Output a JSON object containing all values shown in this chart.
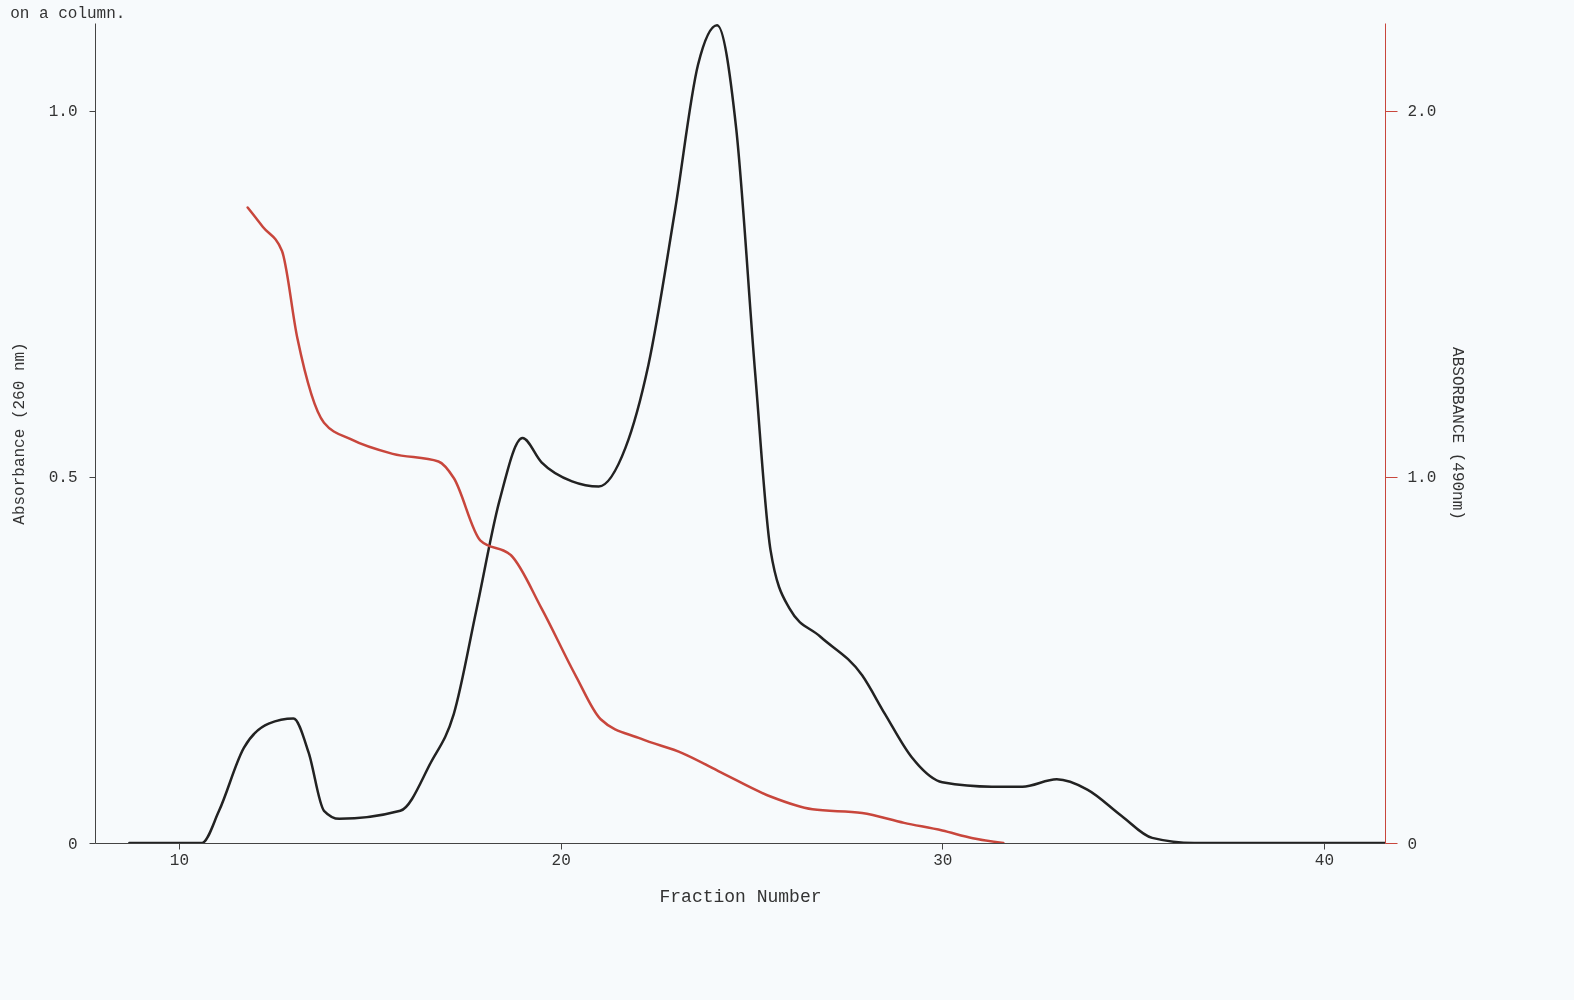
{
  "chart_data": {
    "type": "line",
    "title": "on a column.",
    "xlabel": "Fraction Number",
    "ylabel": "Absorbance (260 nm)",
    "y2label": "ABSORBANCE (490nm)",
    "xlim": [
      7.8,
      41.6
    ],
    "xticks": [
      10,
      20,
      30,
      40
    ],
    "ylim": [
      0,
      1.12
    ],
    "yticks": [
      0,
      0.5,
      {
        "value": 1,
        "label": "1.0"
      }
    ],
    "y2lim": [
      0,
      2.24
    ],
    "y2ticks": [
      0,
      {
        "value": 1,
        "label": "1.0"
      },
      {
        "value": 2,
        "label": "2.0"
      }
    ],
    "grid": false,
    "marker": "none",
    "line_style": "solid",
    "series": [
      {
        "color": "#222222",
        "x": [
          8.7,
          10.6,
          11.05,
          11.7,
          12.35,
          13.0,
          13.4,
          13.8,
          14.2,
          15.8,
          16.6,
          17.2,
          17.8,
          18.4,
          19.0,
          19.5,
          20.3,
          21.0,
          21.7,
          22.3,
          23.0,
          23.6,
          24.1,
          24.6,
          25.1,
          25.5,
          26.0,
          26.8,
          27.9,
          28.5,
          29.2,
          30.0,
          31.3,
          32.1,
          33.0,
          33.8,
          34.7,
          35.5,
          36.6,
          41.6
        ],
        "values": [
          0,
          0,
          0.044,
          0.13,
          0.163,
          0.17,
          0.123,
          0.044,
          0.033,
          0.044,
          0.11,
          0.176,
          0.32,
          0.468,
          0.553,
          0.52,
          0.494,
          0.487,
          0.54,
          0.653,
          0.865,
          1.063,
          1.117,
          0.976,
          0.64,
          0.4,
          0.32,
          0.282,
          0.229,
          0.176,
          0.117,
          0.083,
          0.077,
          0.077,
          0.087,
          0.073,
          0.037,
          0.007,
          0,
          0
        ]
      },
      {
        "color": "#c8463c",
        "axis": "y2",
        "x": [
          11.8,
          12.2,
          12.7,
          13.1,
          13.8,
          14.5,
          15.6,
          16.8,
          17.2,
          17.9,
          18.7,
          19.5,
          20.4,
          21.05,
          22.1,
          23.2,
          24.2,
          25.5,
          26.6,
          27.9,
          29.0,
          30.0,
          30.8,
          31.6
        ],
        "values": [
          1.736,
          1.683,
          1.617,
          1.38,
          1.148,
          1.103,
          1.063,
          1.042,
          0.997,
          0.826,
          0.786,
          0.641,
          0.456,
          0.338,
          0.285,
          0.245,
          0.193,
          0.127,
          0.092,
          0.082,
          0.055,
          0.034,
          0.013,
          0
        ]
      }
    ]
  }
}
